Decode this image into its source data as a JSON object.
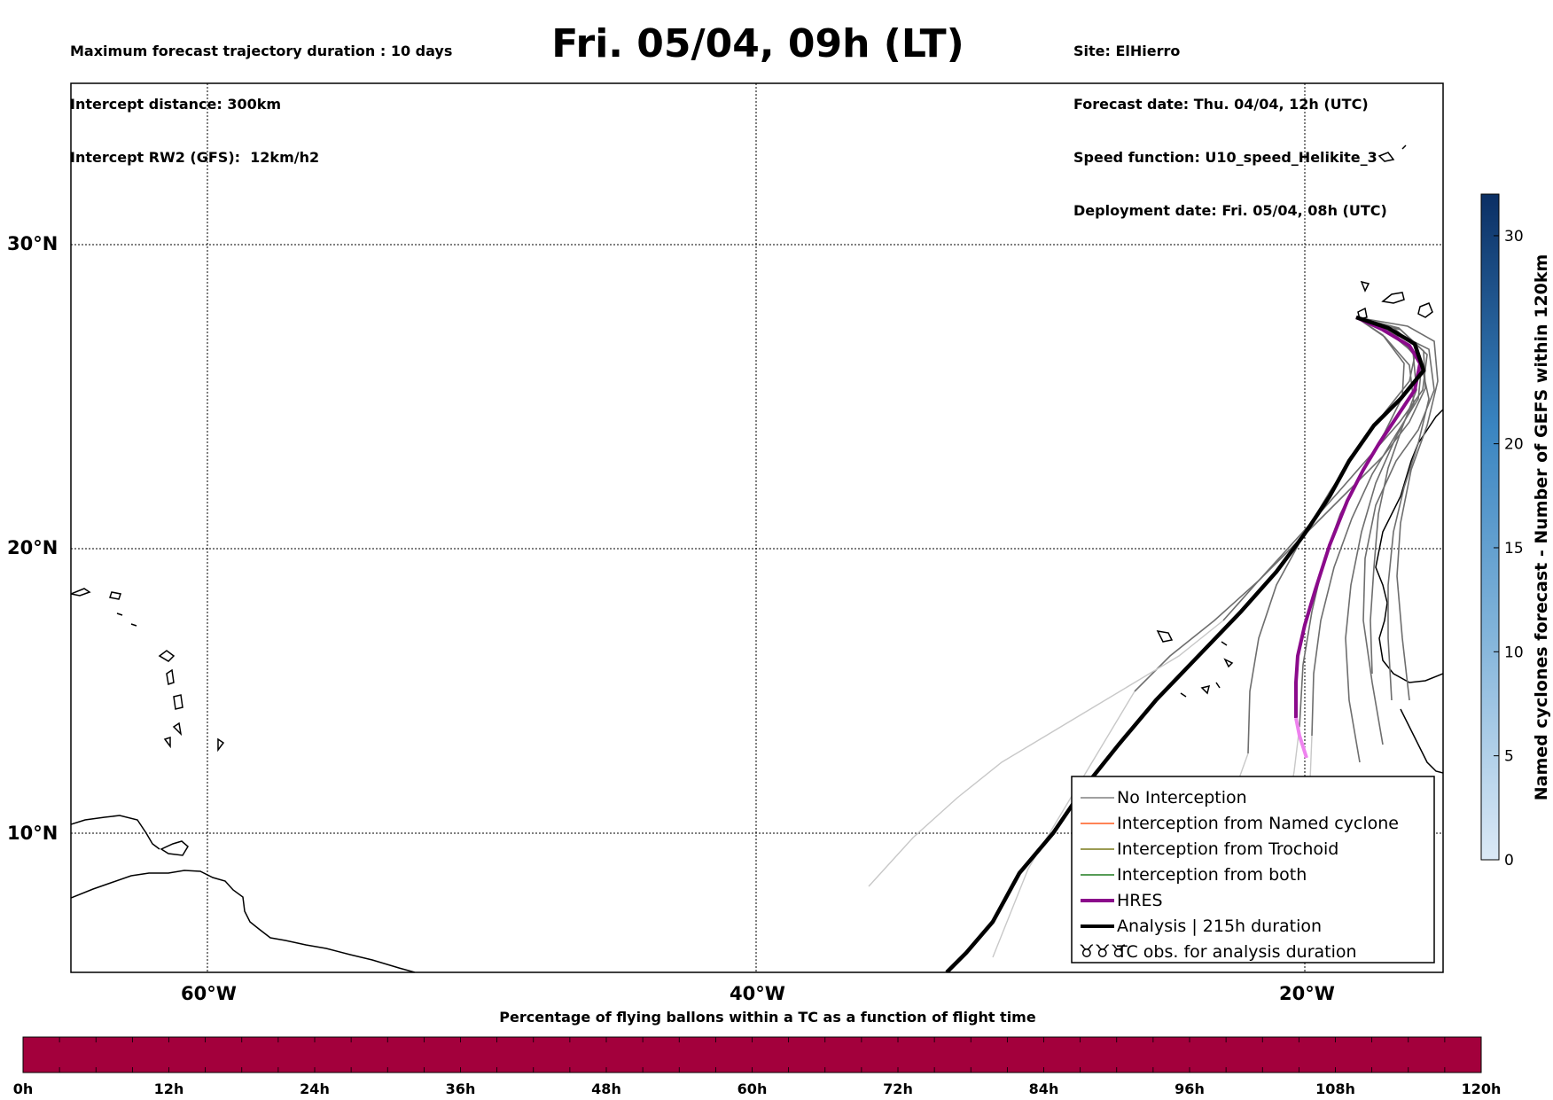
{
  "header": {
    "left_lines": [
      "Maximum forecast trajectory duration : 10 days",
      "Intercept distance: 300km",
      "Intercept RW2 (GFS):  12km/h2"
    ],
    "title": "Fri. 05/04, 09h (LT)",
    "right_lines": [
      "Site: ElHierro",
      "Forecast date: Thu. 04/04, 12h (UTC)",
      "Speed function: U10_speed_Helikite_3",
      "Deployment date: Fri. 05/04, 08h (UTC)"
    ]
  },
  "map": {
    "lat_labels": [
      "30°N",
      "20°N",
      "10°N"
    ],
    "lon_labels": [
      "60°W",
      "40°W",
      "20°W"
    ],
    "lon_range": [
      -65,
      -15
    ],
    "lat_range": [
      5.3,
      34.6
    ],
    "gridlines": "dotted",
    "colors": {
      "ensemble": "#6e6e6e",
      "ensemble_faded": "#c8c8c8",
      "hres": "#8b0a8b",
      "hres_tail": "#ee82ee",
      "analysis": "#000000",
      "coast": "#000000"
    }
  },
  "legend": {
    "items": [
      {
        "label": "No Interception",
        "color": "#808080",
        "style": "thin"
      },
      {
        "label": "Interception from Named cyclone",
        "color": "#ff5a1f",
        "style": "thin"
      },
      {
        "label": "Interception from Trochoid",
        "color": "#7a7a1a",
        "style": "thin"
      },
      {
        "label": "Interception from both",
        "color": "#1e7b1e",
        "style": "thin"
      },
      {
        "label": "HRES",
        "color": "#8b0a8b",
        "style": "thick"
      },
      {
        "label": "Analysis | 215h duration",
        "color": "#000000",
        "style": "thick"
      },
      {
        "label": "TC obs. for analysis duration",
        "color": "#000000",
        "style": "symbol"
      }
    ]
  },
  "colorbar_right": {
    "label": "Named cyclones forecast - Number of GEFS within 120km",
    "ticks": [
      "0",
      "5",
      "10",
      "15",
      "20",
      "30"
    ],
    "range": [
      0,
      32
    ]
  },
  "colorbar_bottom": {
    "title": "Percentage of flying ballons within a TC as a function of flight time",
    "color": "#a3003c",
    "ticks": [
      "0h",
      "12h",
      "24h",
      "36h",
      "48h",
      "60h",
      "72h",
      "84h",
      "96h",
      "108h",
      "120h"
    ]
  }
}
